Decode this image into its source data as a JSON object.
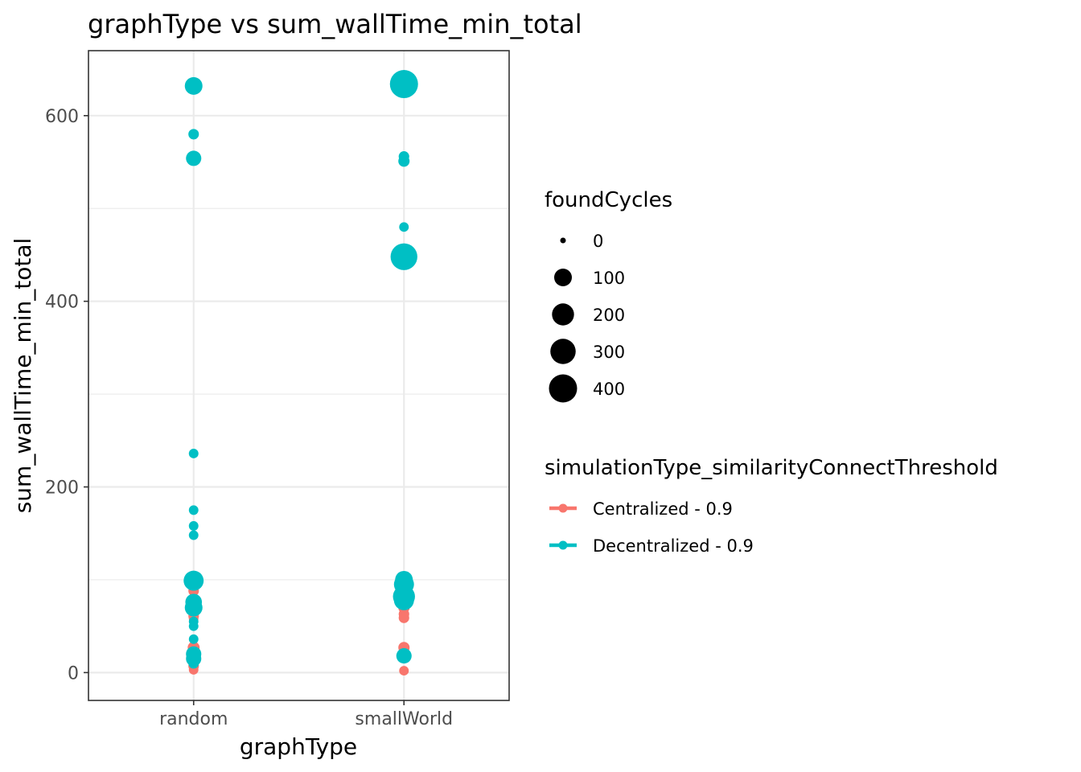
{
  "chart_data": {
    "type": "scatter",
    "title": "graphType  vs  sum_wallTime_min_total",
    "xlabel": "graphType",
    "ylabel": "sum_wallTime_min_total",
    "categories": [
      "random",
      "smallWorld"
    ],
    "ylim": [
      -30,
      670
    ],
    "yticks": [
      0,
      200,
      400,
      600
    ],
    "grid": true,
    "size_legend": {
      "title": "foundCycles",
      "values": [
        0,
        100,
        200,
        300,
        400
      ]
    },
    "color_legend": {
      "title": "simulationType_similarityConnectThreshold",
      "entries": [
        {
          "label": "Centralized - 0.9",
          "color": "#F8766D"
        },
        {
          "label": "Decentralized - 0.9",
          "color": "#00BFC4"
        }
      ]
    },
    "legend_position": "right",
    "series": [
      {
        "name": "Centralized - 0.9",
        "color": "#F8766D",
        "points": [
          {
            "x": "random",
            "y": 88,
            "size": 10
          },
          {
            "x": "random",
            "y": 72,
            "size": 20
          },
          {
            "x": "random",
            "y": 68,
            "size": 15
          },
          {
            "x": "random",
            "y": 65,
            "size": 10
          },
          {
            "x": "random",
            "y": 61,
            "size": 10
          },
          {
            "x": "random",
            "y": 58,
            "size": 5
          },
          {
            "x": "random",
            "y": 27,
            "size": 20
          },
          {
            "x": "random",
            "y": 22,
            "size": 10
          },
          {
            "x": "random",
            "y": 7,
            "size": 10
          },
          {
            "x": "random",
            "y": 3,
            "size": 5
          },
          {
            "x": "smallWorld",
            "y": 76,
            "size": 10
          },
          {
            "x": "smallWorld",
            "y": 70,
            "size": 15
          },
          {
            "x": "smallWorld",
            "y": 63,
            "size": 10
          },
          {
            "x": "smallWorld",
            "y": 59,
            "size": 10
          },
          {
            "x": "smallWorld",
            "y": 27,
            "size": 15
          },
          {
            "x": "smallWorld",
            "y": 23,
            "size": 10
          },
          {
            "x": "smallWorld",
            "y": 2,
            "size": 5
          }
        ]
      },
      {
        "name": "Decentralized - 0.9",
        "color": "#00BFC4",
        "points": [
          {
            "x": "random",
            "y": 632,
            "size": 100
          },
          {
            "x": "random",
            "y": 580,
            "size": 10
          },
          {
            "x": "random",
            "y": 554,
            "size": 60
          },
          {
            "x": "random",
            "y": 236,
            "size": 5
          },
          {
            "x": "random",
            "y": 175,
            "size": 5
          },
          {
            "x": "random",
            "y": 158,
            "size": 5
          },
          {
            "x": "random",
            "y": 148,
            "size": 5
          },
          {
            "x": "random",
            "y": 99,
            "size": 150
          },
          {
            "x": "random",
            "y": 76,
            "size": 80
          },
          {
            "x": "random",
            "y": 70,
            "size": 100
          },
          {
            "x": "random",
            "y": 55,
            "size": 5
          },
          {
            "x": "random",
            "y": 50,
            "size": 5
          },
          {
            "x": "random",
            "y": 36,
            "size": 5
          },
          {
            "x": "random",
            "y": 20,
            "size": 60
          },
          {
            "x": "random",
            "y": 15,
            "size": 60
          },
          {
            "x": "random",
            "y": 10,
            "size": 10
          },
          {
            "x": "smallWorld",
            "y": 634,
            "size": 400
          },
          {
            "x": "smallWorld",
            "y": 556,
            "size": 10
          },
          {
            "x": "smallWorld",
            "y": 551,
            "size": 15
          },
          {
            "x": "smallWorld",
            "y": 480,
            "size": 5
          },
          {
            "x": "smallWorld",
            "y": 448,
            "size": 350
          },
          {
            "x": "smallWorld",
            "y": 100,
            "size": 100
          },
          {
            "x": "smallWorld",
            "y": 95,
            "size": 150
          },
          {
            "x": "smallWorld",
            "y": 82,
            "size": 200
          },
          {
            "x": "smallWorld",
            "y": 78,
            "size": 150
          },
          {
            "x": "smallWorld",
            "y": 18,
            "size": 60
          }
        ]
      }
    ]
  }
}
